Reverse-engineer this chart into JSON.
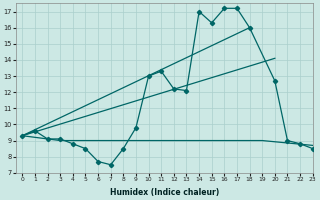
{
  "xlabel": "Humidex (Indice chaleur)",
  "xlim": [
    -0.5,
    23
  ],
  "ylim": [
    7,
    17.5
  ],
  "xticks": [
    0,
    1,
    2,
    3,
    4,
    5,
    6,
    7,
    8,
    9,
    10,
    11,
    12,
    13,
    14,
    15,
    16,
    17,
    18,
    19,
    20,
    21,
    22,
    23
  ],
  "yticks": [
    7,
    8,
    9,
    10,
    11,
    12,
    13,
    14,
    15,
    16,
    17
  ],
  "bg_color": "#cce8e4",
  "line_color": "#006666",
  "line1_x": [
    0,
    1,
    2,
    3,
    4,
    5,
    6,
    7,
    8,
    9,
    10,
    11,
    12,
    13,
    14,
    15,
    16,
    17,
    18,
    20,
    21,
    22,
    23
  ],
  "line1_y": [
    9.3,
    9.6,
    9.1,
    9.1,
    8.8,
    8.5,
    7.7,
    7.5,
    8.5,
    9.8,
    13.0,
    13.3,
    12.2,
    12.1,
    17.0,
    16.3,
    17.2,
    17.2,
    16.0,
    12.7,
    9.0,
    8.8,
    8.5
  ],
  "line2_x": [
    0,
    20
  ],
  "line2_y": [
    9.3,
    14.1
  ],
  "line3_x": [
    0,
    3,
    19,
    23
  ],
  "line3_y": [
    9.3,
    9.0,
    9.0,
    8.7
  ],
  "line4_x": [
    0,
    18
  ],
  "line4_y": [
    9.3,
    16.0
  ]
}
